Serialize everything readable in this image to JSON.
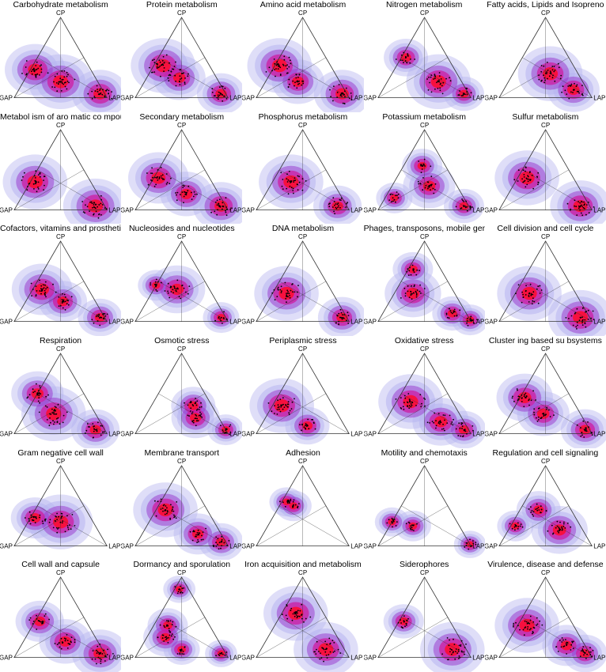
{
  "vertex_labels": {
    "top": "CP",
    "left": "GAP",
    "right": "LAP"
  },
  "colors": {
    "outer": "#b7b5f0",
    "mid": "#9b3fd0",
    "inner": "#d0159c",
    "core": "#ff0a2a",
    "point": "#000000",
    "frame": "#333333"
  },
  "chart_data": [
    {
      "type": "ternary-density",
      "title": "Carbohydrate metabolism",
      "modes": [
        {
          "cp": 0.35,
          "gap": 0.6,
          "lap": 0.05,
          "s": 0.9
        },
        {
          "cp": 0.2,
          "gap": 0.4,
          "lap": 0.4,
          "s": 1.0
        },
        {
          "cp": 0.05,
          "gap": 0.05,
          "lap": 0.9,
          "s": 0.8
        }
      ]
    },
    {
      "type": "ternary-density",
      "title": "Protein metabolism",
      "modes": [
        {
          "cp": 0.4,
          "gap": 0.5,
          "lap": 0.1,
          "s": 1.0
        },
        {
          "cp": 0.25,
          "gap": 0.4,
          "lap": 0.35,
          "s": 0.7
        },
        {
          "cp": 0.05,
          "gap": 0.05,
          "lap": 0.9,
          "s": 0.6
        }
      ]
    },
    {
      "type": "ternary-density",
      "title": "Amino acid metabolism",
      "modes": [
        {
          "cp": 0.4,
          "gap": 0.55,
          "lap": 0.05,
          "s": 1.0
        },
        {
          "cp": 0.2,
          "gap": 0.45,
          "lap": 0.35,
          "s": 0.7
        },
        {
          "cp": 0.05,
          "gap": 0.05,
          "lap": 0.9,
          "s": 0.8
        }
      ]
    },
    {
      "type": "ternary-density",
      "title": "Nitrogen metabolism",
      "modes": [
        {
          "cp": 0.5,
          "gap": 0.45,
          "lap": 0.05,
          "s": 0.5
        },
        {
          "cp": 0.2,
          "gap": 0.25,
          "lap": 0.55,
          "s": 1.0
        },
        {
          "cp": 0.05,
          "gap": 0.05,
          "lap": 0.9,
          "s": 0.4
        }
      ]
    },
    {
      "type": "ternary-density",
      "title": "Fatty acids, Lipids and Isopreno",
      "modes": [
        {
          "cp": 0.3,
          "gap": 0.3,
          "lap": 0.4,
          "s": 1.0
        },
        {
          "cp": 0.1,
          "gap": 0.15,
          "lap": 0.75,
          "s": 0.7
        }
      ]
    },
    {
      "type": "ternary-density",
      "title": "Metabol ism  of aro matic co mpounds",
      "modes": [
        {
          "cp": 0.35,
          "gap": 0.6,
          "lap": 0.05,
          "s": 1.0
        },
        {
          "cp": 0.05,
          "gap": 0.1,
          "lap": 0.85,
          "s": 1.0
        }
      ]
    },
    {
      "type": "ternary-density",
      "title": "Secondary metabolism",
      "modes": [
        {
          "cp": 0.4,
          "gap": 0.55,
          "lap": 0.05,
          "s": 0.9
        },
        {
          "cp": 0.2,
          "gap": 0.35,
          "lap": 0.45,
          "s": 0.7
        },
        {
          "cp": 0.05,
          "gap": 0.05,
          "lap": 0.9,
          "s": 0.8
        }
      ]
    },
    {
      "type": "ternary-density",
      "title": "Phosphorus metabolism",
      "modes": [
        {
          "cp": 0.35,
          "gap": 0.45,
          "lap": 0.2,
          "s": 1.0
        },
        {
          "cp": 0.05,
          "gap": 0.1,
          "lap": 0.85,
          "s": 0.6
        }
      ]
    },
    {
      "type": "ternary-density",
      "title": "Potassium metabolism",
      "modes": [
        {
          "cp": 0.55,
          "gap": 0.25,
          "lap": 0.2,
          "s": 0.4
        },
        {
          "cp": 0.3,
          "gap": 0.3,
          "lap": 0.4,
          "s": 0.7
        },
        {
          "cp": 0.15,
          "gap": 0.75,
          "lap": 0.1,
          "s": 0.3
        },
        {
          "cp": 0.05,
          "gap": 0.05,
          "lap": 0.9,
          "s": 0.4
        }
      ]
    },
    {
      "type": "ternary-density",
      "title": "Sulfur metabolism",
      "modes": [
        {
          "cp": 0.4,
          "gap": 0.5,
          "lap": 0.1,
          "s": 1.0
        },
        {
          "cp": 0.05,
          "gap": 0.1,
          "lap": 0.85,
          "s": 0.9
        }
      ]
    },
    {
      "type": "ternary-density",
      "title": "Cofactors, vitamins and prosthetic groups",
      "modes": [
        {
          "cp": 0.4,
          "gap": 0.5,
          "lap": 0.1,
          "s": 0.9
        },
        {
          "cp": 0.25,
          "gap": 0.35,
          "lap": 0.4,
          "s": 0.6
        },
        {
          "cp": 0.05,
          "gap": 0.05,
          "lap": 0.9,
          "s": 0.5
        }
      ]
    },
    {
      "type": "ternary-density",
      "title": "Nucleosides and nucleotides",
      "modes": [
        {
          "cp": 0.4,
          "gap": 0.35,
          "lap": 0.25,
          "s": 0.8
        },
        {
          "cp": 0.45,
          "gap": 0.55,
          "lap": 0.0,
          "s": 0.3
        },
        {
          "cp": 0.05,
          "gap": 0.05,
          "lap": 0.9,
          "s": 0.3
        }
      ]
    },
    {
      "type": "ternary-density",
      "title": "DNA metabolism",
      "modes": [
        {
          "cp": 0.35,
          "gap": 0.5,
          "lap": 0.15,
          "s": 1.0
        },
        {
          "cp": 0.05,
          "gap": 0.05,
          "lap": 0.9,
          "s": 0.6
        }
      ]
    },
    {
      "type": "ternary-density",
      "title": "Phages, transposons, mobile genetic elements",
      "modes": [
        {
          "cp": 0.65,
          "gap": 0.3,
          "lap": 0.05,
          "s": 0.4
        },
        {
          "cp": 0.35,
          "gap": 0.45,
          "lap": 0.2,
          "s": 0.8
        },
        {
          "cp": 0.1,
          "gap": 0.15,
          "lap": 0.75,
          "s": 0.4
        },
        {
          "cp": 0.02,
          "gap": 0.0,
          "lap": 0.98,
          "s": 0.3
        }
      ]
    },
    {
      "type": "ternary-density",
      "title": "Cell division and cell cycle",
      "modes": [
        {
          "cp": 0.35,
          "gap": 0.5,
          "lap": 0.15,
          "s": 1.0
        },
        {
          "cp": 0.05,
          "gap": 0.1,
          "lap": 0.85,
          "s": 1.0
        }
      ]
    },
    {
      "type": "ternary-density",
      "title": "Respiration",
      "modes": [
        {
          "cp": 0.5,
          "gap": 0.5,
          "lap": 0.0,
          "s": 0.7
        },
        {
          "cp": 0.25,
          "gap": 0.45,
          "lap": 0.3,
          "s": 1.0
        },
        {
          "cp": 0.05,
          "gap": 0.1,
          "lap": 0.85,
          "s": 0.6
        }
      ]
    },
    {
      "type": "ternary-density",
      "title": "Osmotic stress",
      "modes": [
        {
          "cp": 0.35,
          "gap": 0.2,
          "lap": 0.45,
          "s": 0.5
        },
        {
          "cp": 0.2,
          "gap": 0.25,
          "lap": 0.55,
          "s": 0.6
        },
        {
          "cp": 0.05,
          "gap": 0.0,
          "lap": 0.95,
          "s": 0.3
        }
      ]
    },
    {
      "type": "ternary-density",
      "title": "Periplasmic stress",
      "modes": [
        {
          "cp": 0.35,
          "gap": 0.55,
          "lap": 0.1,
          "s": 1.0
        },
        {
          "cp": 0.1,
          "gap": 0.4,
          "lap": 0.5,
          "s": 0.5
        }
      ]
    },
    {
      "type": "ternary-density",
      "title": "Oxidative stress",
      "modes": [
        {
          "cp": 0.4,
          "gap": 0.45,
          "lap": 0.15,
          "s": 1.0
        },
        {
          "cp": 0.15,
          "gap": 0.25,
          "lap": 0.6,
          "s": 0.8
        },
        {
          "cp": 0.05,
          "gap": 0.05,
          "lap": 0.9,
          "s": 0.5
        }
      ]
    },
    {
      "type": "ternary-density",
      "title": "Cluster ing based su bsystems",
      "modes": [
        {
          "cp": 0.45,
          "gap": 0.5,
          "lap": 0.05,
          "s": 0.8
        },
        {
          "cp": 0.25,
          "gap": 0.4,
          "lap": 0.35,
          "s": 0.7
        },
        {
          "cp": 0.05,
          "gap": 0.05,
          "lap": 0.9,
          "s": 0.6
        }
      ]
    },
    {
      "type": "ternary-density",
      "title": "Gram negative cell wall",
      "modes": [
        {
          "cp": 0.3,
          "gap": 0.35,
          "lap": 0.35,
          "s": 1.0
        },
        {
          "cp": 0.35,
          "gap": 0.6,
          "lap": 0.05,
          "s": 0.6
        }
      ]
    },
    {
      "type": "ternary-density",
      "title": "Membrane transport",
      "modes": [
        {
          "cp": 0.45,
          "gap": 0.45,
          "lap": 0.1,
          "s": 1.0
        },
        {
          "cp": 0.15,
          "gap": 0.25,
          "lap": 0.6,
          "s": 0.6
        },
        {
          "cp": 0.05,
          "gap": 0.05,
          "lap": 0.9,
          "s": 0.5
        }
      ]
    },
    {
      "type": "ternary-density",
      "title": "Adhesion",
      "modes": [
        {
          "cp": 0.55,
          "gap": 0.4,
          "lap": 0.05,
          "s": 0.25
        },
        {
          "cp": 0.5,
          "gap": 0.35,
          "lap": 0.15,
          "s": 0.3
        }
      ]
    },
    {
      "type": "ternary-density",
      "title": "Motility and chemotaxis",
      "modes": [
        {
          "cp": 0.3,
          "gap": 0.7,
          "lap": 0.0,
          "s": 0.25
        },
        {
          "cp": 0.25,
          "gap": 0.5,
          "lap": 0.25,
          "s": 0.3
        },
        {
          "cp": 0.02,
          "gap": 0.0,
          "lap": 0.98,
          "s": 0.2
        }
      ]
    },
    {
      "type": "ternary-density",
      "title": "Regulation and cell signaling",
      "modes": [
        {
          "cp": 0.45,
          "gap": 0.35,
          "lap": 0.2,
          "s": 0.5
        },
        {
          "cp": 0.2,
          "gap": 0.25,
          "lap": 0.55,
          "s": 0.8
        },
        {
          "cp": 0.25,
          "gap": 0.7,
          "lap": 0.05,
          "s": 0.3
        }
      ]
    },
    {
      "type": "ternary-density",
      "title": "Cell wall and capsule",
      "modes": [
        {
          "cp": 0.45,
          "gap": 0.5,
          "lap": 0.05,
          "s": 0.6
        },
        {
          "cp": 0.2,
          "gap": 0.35,
          "lap": 0.45,
          "s": 0.7
        },
        {
          "cp": 0.05,
          "gap": 0.05,
          "lap": 0.9,
          "s": 0.8
        }
      ]
    },
    {
      "type": "ternary-density",
      "title": "Dormancy and sporulation",
      "modes": [
        {
          "cp": 0.85,
          "gap": 0.1,
          "lap": 0.05,
          "s": 0.2
        },
        {
          "cp": 0.4,
          "gap": 0.45,
          "lap": 0.15,
          "s": 0.4
        },
        {
          "cp": 0.25,
          "gap": 0.55,
          "lap": 0.2,
          "s": 0.5
        },
        {
          "cp": 0.1,
          "gap": 0.45,
          "lap": 0.45,
          "s": 0.3
        },
        {
          "cp": 0.05,
          "gap": 0.05,
          "lap": 0.9,
          "s": 0.2
        }
      ]
    },
    {
      "type": "ternary-density",
      "title": "Iron acquisition and metabolism",
      "modes": [
        {
          "cp": 0.55,
          "gap": 0.3,
          "lap": 0.15,
          "s": 1.0
        },
        {
          "cp": 0.1,
          "gap": 0.2,
          "lap": 0.7,
          "s": 1.0
        }
      ]
    },
    {
      "type": "ternary-density",
      "title": "Siderophores",
      "modes": [
        {
          "cp": 0.45,
          "gap": 0.5,
          "lap": 0.05,
          "s": 0.4
        },
        {
          "cp": 0.1,
          "gap": 0.15,
          "lap": 0.75,
          "s": 1.0
        }
      ]
    },
    {
      "type": "ternary-density",
      "title": "Virulence, disease and defense",
      "modes": [
        {
          "cp": 0.4,
          "gap": 0.5,
          "lap": 0.1,
          "s": 1.0
        },
        {
          "cp": 0.15,
          "gap": 0.2,
          "lap": 0.65,
          "s": 0.6
        },
        {
          "cp": 0.05,
          "gap": 0.05,
          "lap": 0.9,
          "s": 0.5
        }
      ]
    }
  ]
}
